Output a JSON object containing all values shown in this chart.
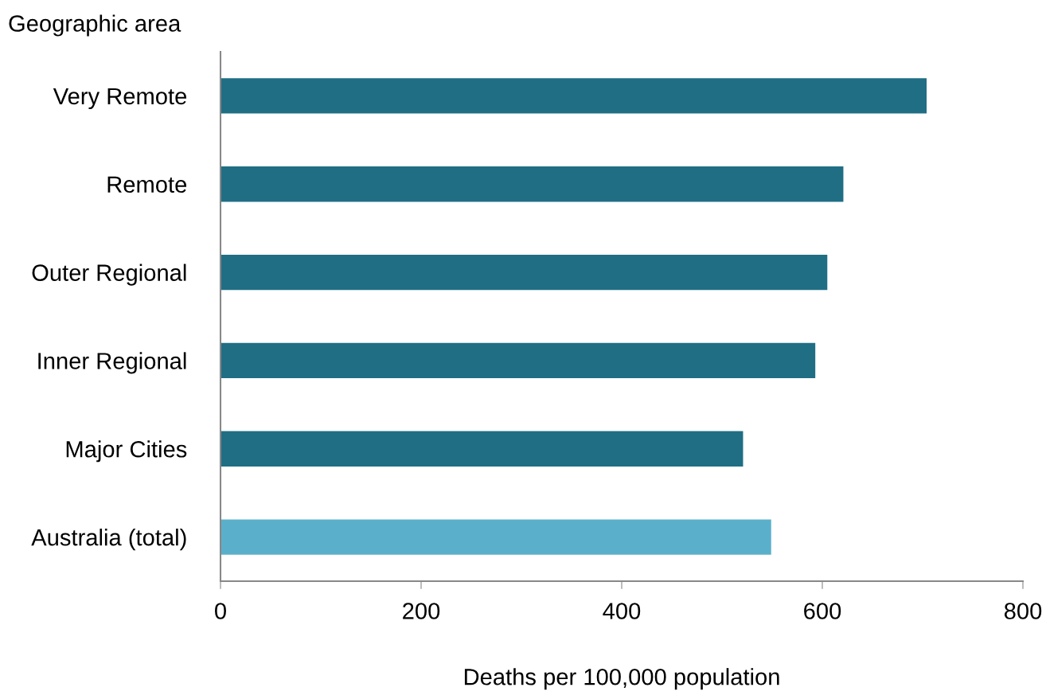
{
  "chart_data": {
    "type": "bar",
    "orientation": "horizontal",
    "ylabel": "Geographic area",
    "xlabel": "Deaths per 100,000 population",
    "categories": [
      "Very Remote",
      "Remote",
      "Outer Regional",
      "Inner Regional",
      "Major Cities",
      "Australia (total)"
    ],
    "values": [
      704,
      621,
      605,
      593,
      521,
      549
    ],
    "colors": [
      "#1f6e84",
      "#1f6e84",
      "#1f6e84",
      "#1f6e84",
      "#1f6e84",
      "#5ab0cb"
    ],
    "xlim": [
      0,
      800
    ],
    "xticks": [
      0,
      200,
      400,
      600,
      800
    ],
    "grid": false,
    "legend": false
  }
}
